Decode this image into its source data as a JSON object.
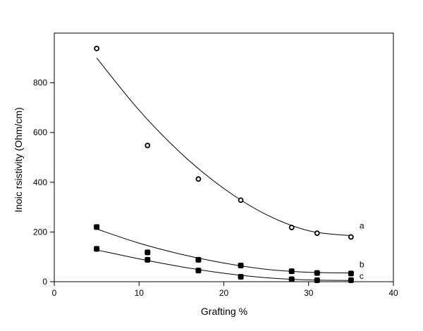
{
  "chart_data": {
    "type": "scatter",
    "title": "",
    "xlabel": "Grafting %",
    "ylabel": "Inoic rsistivity (Ohm/cm)",
    "xlim": [
      0,
      40
    ],
    "ylim": [
      0,
      1000
    ],
    "xticks": [
      0,
      10,
      20,
      30,
      40
    ],
    "yticks": [
      0,
      200,
      400,
      600,
      800
    ],
    "grid": false,
    "series": [
      {
        "name": "a",
        "marker": "open-circle",
        "x": [
          5,
          11,
          17,
          22,
          28,
          31,
          35
        ],
        "y": [
          938,
          548,
          413,
          328,
          218,
          195,
          180
        ],
        "fit": [
          [
            5,
            900
          ],
          [
            10,
            690
          ],
          [
            15,
            515
          ],
          [
            20,
            375
          ],
          [
            25,
            270
          ],
          [
            30,
            205
          ],
          [
            35,
            185
          ]
        ]
      },
      {
        "name": "b",
        "marker": "filled-square",
        "x": [
          5,
          11,
          17,
          22,
          28,
          31,
          35
        ],
        "y": [
          220,
          118,
          88,
          65,
          42,
          35,
          33
        ],
        "fit": [
          [
            5,
            212
          ],
          [
            10,
            155
          ],
          [
            15,
            110
          ],
          [
            20,
            75
          ],
          [
            25,
            50
          ],
          [
            30,
            38
          ],
          [
            35,
            35
          ]
        ]
      },
      {
        "name": "c",
        "marker": "filled-square",
        "x": [
          5,
          11,
          17,
          22,
          28,
          31,
          35
        ],
        "y": [
          132,
          88,
          45,
          20,
          10,
          6,
          6
        ],
        "fit": [
          [
            5,
            128
          ],
          [
            10,
            92
          ],
          [
            15,
            60
          ],
          [
            20,
            34
          ],
          [
            25,
            16
          ],
          [
            30,
            7
          ],
          [
            35,
            5
          ]
        ]
      }
    ]
  }
}
